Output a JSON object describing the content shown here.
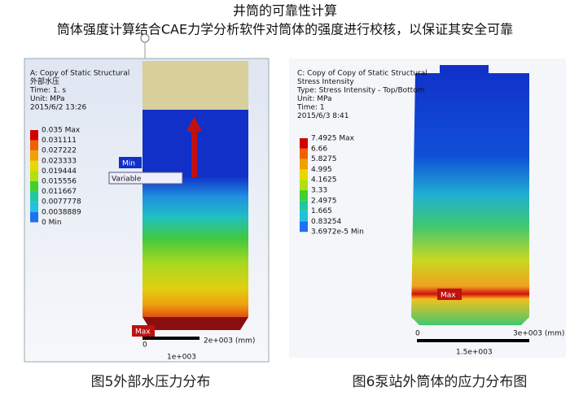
{
  "header": {
    "title": "井筒的可靠性计算",
    "subtitle": "筒体强度计算结合CAE力学分析软件对筒体的强度进行校核，以保证其安全可靠"
  },
  "left_panel": {
    "lines": [
      "A: Copy of Static Structural",
      "外部水压",
      "Time: 1. s",
      "Unit: MPa",
      "2015/6/2 13:26"
    ],
    "legend": [
      "0.035 Max",
      "0.031111",
      "0.027222",
      "0.023333",
      "0.019444",
      "0.015556",
      "0.011667",
      "0.0077778",
      "0.0038889",
      "0 Min"
    ],
    "min_label": "Min",
    "max_label": "Max",
    "probe_label": "Variable",
    "scale": {
      "start": "0",
      "end": "2e+003 (mm)",
      "mid": "1e+003"
    },
    "caption": "图5外部水压力分布"
  },
  "right_panel": {
    "lines": [
      "C: Copy of Copy of Static Structural",
      "Stress Intensity",
      "Type: Stress Intensity - Top/Bottom",
      "Unit: MPa",
      "Time: 1",
      "2015/6/3 8:41"
    ],
    "legend": [
      "7.4925 Max",
      "6.66",
      "5.8275",
      "4.995",
      "4.1625",
      "3.33",
      "2.4975",
      "1.665",
      "0.83254",
      "3.6972e-5 Min"
    ],
    "max_label": "Max",
    "scale": {
      "start": "0",
      "end": "3e+003 (mm)",
      "mid": "1.5e+003"
    },
    "caption": "图6泵站外筒体的应力分布图"
  }
}
